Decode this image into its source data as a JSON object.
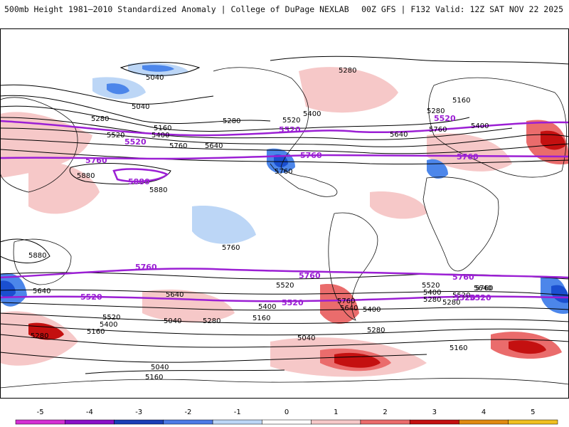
{
  "header": {
    "title_left": "500mb Height 1981–2010 Standardized Anomaly | College of DuPage NEXLAB",
    "title_right": "00Z GFS | F132 Valid: 12Z SAT NOV 22 2025"
  },
  "map": {
    "black_contour_labels": [
      "5040",
      "5040",
      "5280",
      "5160",
      "5280",
      "5520",
      "5400",
      "5760",
      "5640",
      "5520",
      "5400",
      "5280",
      "5640",
      "5760",
      "5880",
      "5880",
      "5880",
      "5760",
      "5760",
      "5640",
      "5640",
      "5520",
      "5400",
      "5280",
      "5160",
      "5040",
      "5040",
      "5160",
      "5280",
      "5520",
      "5400",
      "5640",
      "5760",
      "5400",
      "5520",
      "5160",
      "5280",
      "5400",
      "5520",
      "5640",
      "5760",
      "5280",
      "5160",
      "5040",
      "5160",
      "5280",
      "5400",
      "5280"
    ],
    "purple_contour_labels": [
      "5520",
      "5760",
      "5880",
      "5520",
      "5760",
      "5520",
      "5760",
      "5520",
      "5760",
      "5520",
      "5760",
      "5520",
      "5760",
      "5520"
    ],
    "colors": {
      "purple_line": "#9b1fd4",
      "strong_neg": "#1a4fd0",
      "mid_neg": "#4c86ea",
      "light_neg": "#bcd6f6",
      "light_pos": "#f6c8c8",
      "mid_pos": "#ea6c6c",
      "strong_pos": "#c41010"
    }
  },
  "colorbar": {
    "ticks": [
      "-5",
      "-4",
      "-3",
      "-2",
      "-1",
      "0",
      "1",
      "2",
      "3",
      "4",
      "5"
    ],
    "colors": [
      "#d42fd4",
      "#8a10c8",
      "#1a3fb8",
      "#4c7ae6",
      "#bcd6f6",
      "#ffffff",
      "#f6c8c8",
      "#ea6c6c",
      "#c41010",
      "#e08a10",
      "#f0c020"
    ]
  }
}
